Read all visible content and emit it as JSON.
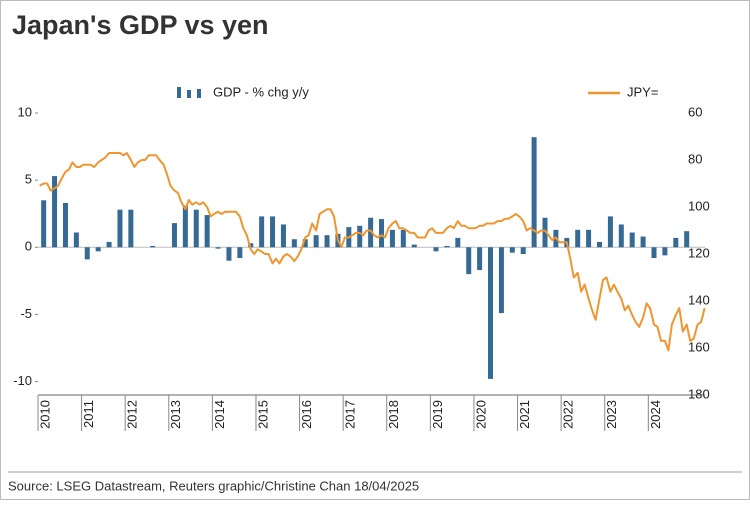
{
  "title": "Japan's GDP vs yen",
  "source": "Source: LSEG Datastream, Reuters graphic/Christine Chan 18/04/2025",
  "chart_data": {
    "type": "bar-line",
    "xlim": [
      2010,
      2025.3
    ],
    "xticks": [
      2010,
      2011,
      2012,
      2013,
      2014,
      2015,
      2016,
      2017,
      2018,
      2019,
      2020,
      2021,
      2022,
      2023,
      2024
    ],
    "ylim": [
      -11,
      10
    ],
    "yticks": [
      -10,
      -5,
      0,
      5,
      10
    ],
    "y2lim": [
      180,
      60
    ],
    "y2ticks": [
      60,
      80,
      100,
      120,
      140,
      160,
      180
    ],
    "series": [
      {
        "name": "GDP - % chg y/y",
        "type": "bar",
        "axis": "y",
        "color": "#346a93",
        "x": [
          2010.13,
          2010.38,
          2010.63,
          2010.88,
          2011.13,
          2011.38,
          2011.63,
          2011.88,
          2012.13,
          2012.38,
          2012.63,
          2012.88,
          2013.13,
          2013.38,
          2013.63,
          2013.88,
          2014.13,
          2014.38,
          2014.63,
          2014.88,
          2015.13,
          2015.38,
          2015.63,
          2015.88,
          2016.13,
          2016.38,
          2016.63,
          2016.88,
          2017.13,
          2017.38,
          2017.63,
          2017.88,
          2018.13,
          2018.38,
          2018.63,
          2018.88,
          2019.13,
          2019.38,
          2019.63,
          2019.88,
          2020.13,
          2020.38,
          2020.63,
          2020.88,
          2021.13,
          2021.38,
          2021.63,
          2021.88,
          2022.13,
          2022.38,
          2022.63,
          2022.88,
          2023.13,
          2023.38,
          2023.63,
          2023.88,
          2024.13,
          2024.38,
          2024.63,
          2024.88
        ],
        "values": [
          3.5,
          5.3,
          3.3,
          1.1,
          -0.9,
          -0.3,
          0.4,
          2.8,
          2.8,
          0.0,
          0.1,
          0.0,
          1.8,
          3.1,
          2.8,
          2.4,
          -0.1,
          -1.0,
          -0.8,
          0.3,
          2.3,
          2.3,
          1.7,
          0.6,
          0.6,
          0.9,
          0.9,
          1.0,
          1.5,
          1.6,
          2.2,
          2.1,
          1.3,
          1.3,
          0.2,
          0.0,
          -0.3,
          0.1,
          0.7,
          -2.0,
          -1.7,
          -9.8,
          -4.9,
          -0.4,
          -0.5,
          8.2,
          2.2,
          1.3,
          0.7,
          1.3,
          1.3,
          0.4,
          2.3,
          1.7,
          1.1,
          0.8,
          -0.8,
          -0.6,
          0.7,
          1.2
        ]
      },
      {
        "name": "JPY=",
        "type": "line",
        "axis": "y2",
        "color": "#f0962f",
        "x": [
          2010.04,
          2010.13,
          2010.21,
          2010.29,
          2010.38,
          2010.46,
          2010.54,
          2010.63,
          2010.71,
          2010.79,
          2010.88,
          2010.96,
          2011.04,
          2011.13,
          2011.21,
          2011.29,
          2011.38,
          2011.46,
          2011.54,
          2011.63,
          2011.71,
          2011.79,
          2011.88,
          2011.96,
          2012.04,
          2012.13,
          2012.21,
          2012.29,
          2012.38,
          2012.46,
          2012.54,
          2012.63,
          2012.71,
          2012.79,
          2012.88,
          2012.96,
          2013.04,
          2013.13,
          2013.21,
          2013.29,
          2013.38,
          2013.46,
          2013.54,
          2013.63,
          2013.71,
          2013.79,
          2013.88,
          2013.96,
          2014.04,
          2014.13,
          2014.21,
          2014.29,
          2014.38,
          2014.46,
          2014.54,
          2014.63,
          2014.71,
          2014.79,
          2014.88,
          2014.96,
          2015.04,
          2015.13,
          2015.21,
          2015.29,
          2015.38,
          2015.46,
          2015.54,
          2015.63,
          2015.71,
          2015.79,
          2015.88,
          2015.96,
          2016.04,
          2016.13,
          2016.21,
          2016.29,
          2016.38,
          2016.46,
          2016.54,
          2016.63,
          2016.71,
          2016.79,
          2016.88,
          2016.96,
          2017.04,
          2017.13,
          2017.21,
          2017.29,
          2017.38,
          2017.46,
          2017.54,
          2017.63,
          2017.71,
          2017.79,
          2017.88,
          2017.96,
          2018.04,
          2018.13,
          2018.21,
          2018.29,
          2018.38,
          2018.46,
          2018.54,
          2018.63,
          2018.71,
          2018.79,
          2018.88,
          2018.96,
          2019.04,
          2019.13,
          2019.21,
          2019.29,
          2019.38,
          2019.46,
          2019.54,
          2019.63,
          2019.71,
          2019.79,
          2019.88,
          2019.96,
          2020.04,
          2020.13,
          2020.21,
          2020.29,
          2020.38,
          2020.46,
          2020.54,
          2020.63,
          2020.71,
          2020.79,
          2020.88,
          2020.96,
          2021.04,
          2021.13,
          2021.21,
          2021.29,
          2021.38,
          2021.46,
          2021.54,
          2021.63,
          2021.71,
          2021.79,
          2021.88,
          2021.96,
          2022.04,
          2022.13,
          2022.21,
          2022.29,
          2022.38,
          2022.46,
          2022.54,
          2022.63,
          2022.71,
          2022.79,
          2022.88,
          2022.96,
          2023.04,
          2023.13,
          2023.21,
          2023.29,
          2023.38,
          2023.46,
          2023.54,
          2023.63,
          2023.71,
          2023.79,
          2023.88,
          2023.96,
          2024.04,
          2024.13,
          2024.21,
          2024.29,
          2024.38,
          2024.46,
          2024.54,
          2024.63,
          2024.71,
          2024.79,
          2024.88,
          2024.96,
          2025.04,
          2025.13,
          2025.21,
          2025.29
        ],
        "values": [
          91,
          90,
          90,
          93,
          92,
          91,
          88,
          85,
          84,
          81,
          83,
          83,
          82,
          82,
          82,
          83,
          81,
          80,
          79,
          77,
          77,
          77,
          77,
          78,
          77,
          80,
          83,
          81,
          80,
          80,
          78,
          78,
          78,
          80,
          82,
          86,
          91,
          93,
          94,
          98,
          101,
          97,
          99,
          98,
          99,
          98,
          100,
          104,
          103,
          102,
          103,
          102,
          102,
          102,
          102,
          104,
          109,
          112,
          118,
          120,
          118,
          119,
          120,
          120,
          124,
          122,
          124,
          121,
          120,
          121,
          123,
          121,
          118,
          113,
          112,
          107,
          110,
          103,
          102,
          101,
          101,
          104,
          114,
          117,
          113,
          113,
          112,
          111,
          111,
          112,
          110,
          110,
          112,
          113,
          112,
          113,
          109,
          107,
          106,
          109,
          109,
          110,
          111,
          111,
          113,
          113,
          113,
          110,
          109,
          111,
          111,
          111,
          109,
          108,
          109,
          106,
          108,
          108,
          109,
          109,
          109,
          108,
          108,
          107,
          107,
          107,
          106,
          106,
          105,
          105,
          104,
          103,
          104,
          106,
          110,
          109,
          110,
          111,
          110,
          110,
          112,
          114,
          113,
          115,
          115,
          115,
          122,
          130,
          128,
          136,
          133,
          139,
          144,
          148,
          139,
          131,
          130,
          136,
          133,
          136,
          139,
          144,
          142,
          146,
          149,
          151,
          147,
          141,
          143,
          150,
          151,
          157,
          157,
          161,
          150,
          146,
          143,
          153,
          150,
          157,
          156,
          150,
          149,
          143
        ]
      }
    ]
  }
}
